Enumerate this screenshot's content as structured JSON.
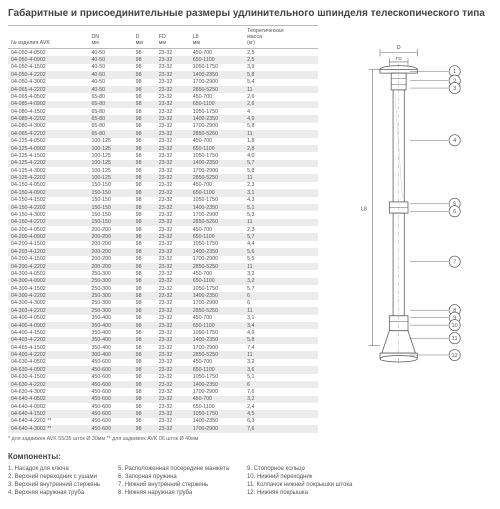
{
  "title": "Габаритные и присоединительные размеры удлинительного шпинделя телескопического типа",
  "table": {
    "columns": [
      "№ изделия AVK",
      "DN\nмм",
      "D\nмм",
      "FD\nмм",
      "L8\nмм",
      "Теоретическая\nмасса\n(кг)"
    ],
    "rows": [
      [
        "04-050-4-0502",
        "40-50",
        "98",
        "23-32",
        "450-700",
        "2,5"
      ],
      [
        "04-050-4-0902",
        "40-50",
        "98",
        "23-32",
        "650-1100",
        "2,5"
      ],
      [
        "04-050-4-1502",
        "40-50",
        "98",
        "23-32",
        "1050-1750",
        "3,9"
      ],
      [
        "04-050-4-2202",
        "40-50",
        "98",
        "23-32",
        "1400-2350",
        "5,8"
      ],
      [
        "04-050-4-3002",
        "40-50",
        "98",
        "23-32",
        "1700-2900",
        "5,4"
      ],
      [
        "04-065-4-2202",
        "40-50",
        "98",
        "23-32",
        "2850-5250",
        "11"
      ],
      [
        "04-065-4-0502",
        "65-80",
        "98",
        "23-32",
        "450-700",
        "2,6"
      ],
      [
        "04-085-4-0902",
        "65-80",
        "98",
        "23-32",
        "650-1100",
        "2,6"
      ],
      [
        "04-080-4-1502",
        "65-80",
        "98",
        "23-32",
        "1050-1750",
        "4"
      ],
      [
        "04-085-4-2202",
        "65-80",
        "98",
        "23-32",
        "1400-2350",
        "4,9"
      ],
      [
        "04-080-4-3002",
        "65-80",
        "98",
        "23-32",
        "1700-2900",
        "5,8"
      ],
      [
        "04-065-4-2202",
        "65-80",
        "98",
        "23-32",
        "2850-5250",
        "11"
      ],
      [
        "04-125-4-0502",
        "100-125",
        "98",
        "23-32",
        "450-700",
        "1,8"
      ],
      [
        "04-125-4-0902",
        "100-125",
        "98",
        "23-32",
        "650-1100",
        "2,8"
      ],
      [
        "04-125-4-1502",
        "100-125",
        "98",
        "23-32",
        "1050-1750",
        "4,0"
      ],
      [
        "04-125-4-2202",
        "100-125",
        "98",
        "23-32",
        "1400-2350",
        "5,7"
      ],
      [
        "04-125-4-3002",
        "100-125",
        "98",
        "23-32",
        "1700-2900",
        "5,8"
      ],
      [
        "04-125-4-2202",
        "100-125",
        "98",
        "23-32",
        "2850-5250",
        "11"
      ],
      [
        "04-150-4-0502",
        "150-150",
        "98",
        "23-32",
        "450-700",
        "2,3"
      ],
      [
        "04-150-4-0902",
        "150-150",
        "98",
        "23-32",
        "650-1100",
        "3,1"
      ],
      [
        "04-150-4-1502",
        "150-150",
        "98",
        "23-32",
        "1050-1750",
        "4,3"
      ],
      [
        "04-150-4-2202",
        "150-150",
        "98",
        "23-32",
        "1400-2350",
        "5,1"
      ],
      [
        "04-150-4-3002",
        "150-150",
        "98",
        "23-32",
        "1700-2900",
        "5,3"
      ],
      [
        "04-150-4-2202",
        "150-150",
        "98",
        "23-32",
        "2850-5250",
        "11"
      ],
      [
        "04-200-4-0502",
        "200-200",
        "98",
        "23-32",
        "450-700",
        "2,3"
      ],
      [
        "04-200-4-0902",
        "200-200",
        "98",
        "23-32",
        "650-1100",
        "5,7"
      ],
      [
        "04-200-4-1502",
        "200-200",
        "98",
        "23-32",
        "1050-1750",
        "4,4"
      ],
      [
        "04-203-4-1202",
        "200-200",
        "98",
        "23-32",
        "1400-2350",
        "5,6"
      ],
      [
        "04-200-4-1502",
        "200-200",
        "98",
        "23-32",
        "1700-2900",
        "5,5"
      ],
      [
        "04-200-4-2202",
        "200-200",
        "98",
        "23-32",
        "2850-5250",
        "11"
      ],
      [
        "04-300-4-0502",
        "250-300",
        "98",
        "23-32",
        "450-700",
        "3,2"
      ],
      [
        "04-300-4-0902",
        "250-300",
        "98",
        "23-32",
        "650-1100",
        "3,2"
      ],
      [
        "04-300-4-1502",
        "250-300",
        "98",
        "23-32",
        "1050-1750",
        "5,7"
      ],
      [
        "04-300-4-2202",
        "250-300",
        "98",
        "23-32",
        "1400-2350",
        "6"
      ],
      [
        "04-300-4-3002",
        "250-300",
        "98",
        "23-32",
        "1700-2900",
        "6"
      ],
      [
        "04-303-4-2202",
        "250-300",
        "98",
        "23-32",
        "2850-5250",
        "11"
      ],
      [
        "04-400-4-0502",
        "350-400",
        "98",
        "23-32",
        "450-700",
        "3,1"
      ],
      [
        "04-400-4-0902",
        "350-400",
        "98",
        "23-32",
        "650-1100",
        "3,4"
      ],
      [
        "04-400-4-1502",
        "350-400",
        "98",
        "23-32",
        "1050-1750",
        "4,9"
      ],
      [
        "04-403-4-2202",
        "350-400",
        "98",
        "23-32",
        "1400-2350",
        "5,8"
      ],
      [
        "04-465-4-1502",
        "350-400",
        "98",
        "23-32",
        "1700-2900",
        "7,4"
      ],
      [
        "04-400-4-2202",
        "300-400",
        "98",
        "23-32",
        "2850-5250",
        "11"
      ],
      [
        "04-630-4-0502",
        "450-600",
        "98",
        "23-32",
        "450-700",
        "3,2"
      ],
      [
        "04-630-4-0902",
        "450-600",
        "98",
        "23-32",
        "650-1100",
        "3,6"
      ],
      [
        "04-630-4-1502",
        "450-600",
        "98",
        "23-32",
        "1050-1750",
        "5,1"
      ],
      [
        "04-630-4-2202",
        "450-600",
        "98",
        "23-32",
        "1400-2350",
        "6"
      ],
      [
        "04-630-4-3002",
        "450-600",
        "98",
        "23-32",
        "1700-2900",
        "7,6"
      ],
      [
        "04-640-4-0502",
        "450-600",
        "98",
        "23-32",
        "450-700",
        "3,2"
      ],
      [
        "04-640-4-0902",
        "450-600",
        "98",
        "23-32",
        "650-1100",
        "2,4"
      ],
      [
        "04-640-4-1502",
        "450-600",
        "98",
        "23-32",
        "1050-1750",
        "4,5"
      ],
      [
        "04-640-4-2202 **",
        "450-600",
        "98",
        "23-32",
        "1400-2350",
        "6,3"
      ],
      [
        "04-640-4-3002 **",
        "450-600",
        "98",
        "23-32",
        "1700-2900",
        "7,6"
      ]
    ],
    "footnote": "* для задвижек AVK 55/35 шток Ø 30мм  ** для задвижек AVK 06 шток Ø 40мм"
  },
  "components": {
    "title": "Компоненты:",
    "col1": [
      "1. Насадок для ключа",
      "2. Верхний переходник с ушами",
      "3. Верхний внутренний стержень",
      "4. Верхняя наружная труба"
    ],
    "col2": [
      "5. Расположенная посередине манжета",
      "6. Запорная пружина",
      "7. Нижний внутренний стержень",
      "8. Нижняя наружная труба"
    ],
    "col3": [
      "9. Стопорное кольцо",
      "10. Нижний переходник",
      "11. Колпачок нижней покрышки штока",
      "12. Нижняя покрышка"
    ]
  },
  "diagram": {
    "stroke": "#666",
    "label_color": "#555",
    "callouts": [
      1,
      2,
      3,
      4,
      5,
      6,
      7,
      8,
      9,
      10,
      11,
      12
    ],
    "dim_labels": [
      "D",
      "FD",
      "L8"
    ]
  }
}
